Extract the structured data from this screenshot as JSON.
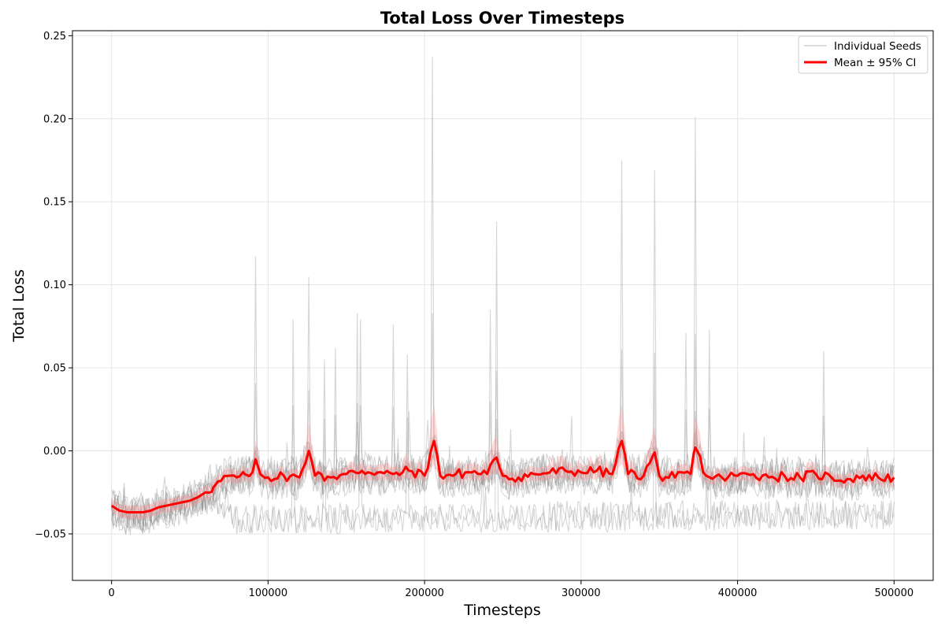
{
  "chart_data": {
    "type": "line",
    "title": "Total Loss Over Timesteps",
    "xlabel": "Timesteps",
    "ylabel": "Total Loss",
    "xlim": [
      -25000,
      525000
    ],
    "ylim": [
      -0.078,
      0.253
    ],
    "x_ticks": [
      0,
      100000,
      200000,
      300000,
      400000,
      500000
    ],
    "x_tick_labels": [
      "0",
      "100000",
      "200000",
      "300000",
      "400000",
      "500000"
    ],
    "y_ticks": [
      -0.05,
      0.0,
      0.05,
      0.1,
      0.15,
      0.2,
      0.25
    ],
    "y_tick_labels": [
      "−0.05",
      "0.00",
      "0.05",
      "0.10",
      "0.15",
      "0.20",
      "0.25"
    ],
    "grid": true,
    "legend_position": "top-right",
    "legend": [
      {
        "label": "Individual Seeds",
        "color": "#a0a0a0"
      },
      {
        "label": "Mean ± 95% CI",
        "color": "#ff0000"
      }
    ],
    "colors": {
      "seeds": "#808080",
      "mean": "#ff0000",
      "ci": "#ff9999"
    },
    "series": [
      {
        "name": "Individual Seeds",
        "role": "seeds",
        "seed_count": 10,
        "spikes": [
          {
            "x": 92000,
            "y": 0.117
          },
          {
            "x": 116000,
            "y": 0.079
          },
          {
            "x": 126000,
            "y": 0.105
          },
          {
            "x": 136000,
            "y": 0.055
          },
          {
            "x": 143000,
            "y": 0.062
          },
          {
            "x": 157000,
            "y": 0.083
          },
          {
            "x": 159000,
            "y": 0.079
          },
          {
            "x": 180000,
            "y": 0.076
          },
          {
            "x": 189000,
            "y": 0.058
          },
          {
            "x": 205000,
            "y": 0.237
          },
          {
            "x": 242000,
            "y": 0.085
          },
          {
            "x": 246000,
            "y": 0.138
          },
          {
            "x": 326000,
            "y": 0.175
          },
          {
            "x": 347000,
            "y": 0.169
          },
          {
            "x": 367000,
            "y": 0.071
          },
          {
            "x": 373000,
            "y": 0.201
          },
          {
            "x": 382000,
            "y": 0.073
          },
          {
            "x": 455000,
            "y": 0.06
          }
        ]
      },
      {
        "name": "Mean ± 95% CI",
        "role": "mean",
        "x": [
          0,
          5000,
          10000,
          15000,
          20000,
          25000,
          30000,
          35000,
          40000,
          45000,
          50000,
          55000,
          60000,
          65000,
          70000,
          75000,
          80000,
          85000,
          90000,
          92000,
          95000,
          100000,
          110000,
          120000,
          126000,
          130000,
          140000,
          150000,
          160000,
          170000,
          180000,
          190000,
          200000,
          206000,
          210000,
          220000,
          230000,
          240000,
          246000,
          250000,
          260000,
          270000,
          280000,
          290000,
          300000,
          310000,
          320000,
          326000,
          330000,
          340000,
          347000,
          350000,
          360000,
          370000,
          373000,
          380000,
          390000,
          400000,
          410000,
          420000,
          430000,
          440000,
          450000,
          460000,
          470000,
          480000,
          490000,
          500000
        ],
        "y": [
          -0.033,
          -0.036,
          -0.037,
          -0.037,
          -0.037,
          -0.036,
          -0.034,
          -0.033,
          -0.032,
          -0.031,
          -0.03,
          -0.028,
          -0.025,
          -0.022,
          -0.018,
          -0.015,
          -0.016,
          -0.014,
          -0.013,
          -0.005,
          -0.014,
          -0.016,
          -0.015,
          -0.016,
          0.0,
          -0.015,
          -0.016,
          -0.014,
          -0.012,
          -0.013,
          -0.014,
          -0.012,
          -0.015,
          0.006,
          -0.015,
          -0.014,
          -0.013,
          -0.014,
          -0.004,
          -0.015,
          -0.016,
          -0.014,
          -0.013,
          -0.012,
          -0.013,
          -0.012,
          -0.014,
          0.006,
          -0.014,
          -0.015,
          -0.001,
          -0.015,
          -0.016,
          -0.014,
          0.002,
          -0.015,
          -0.016,
          -0.015,
          -0.014,
          -0.016,
          -0.015,
          -0.016,
          -0.014,
          -0.016,
          -0.017,
          -0.015,
          -0.016,
          -0.016
        ]
      }
    ]
  }
}
